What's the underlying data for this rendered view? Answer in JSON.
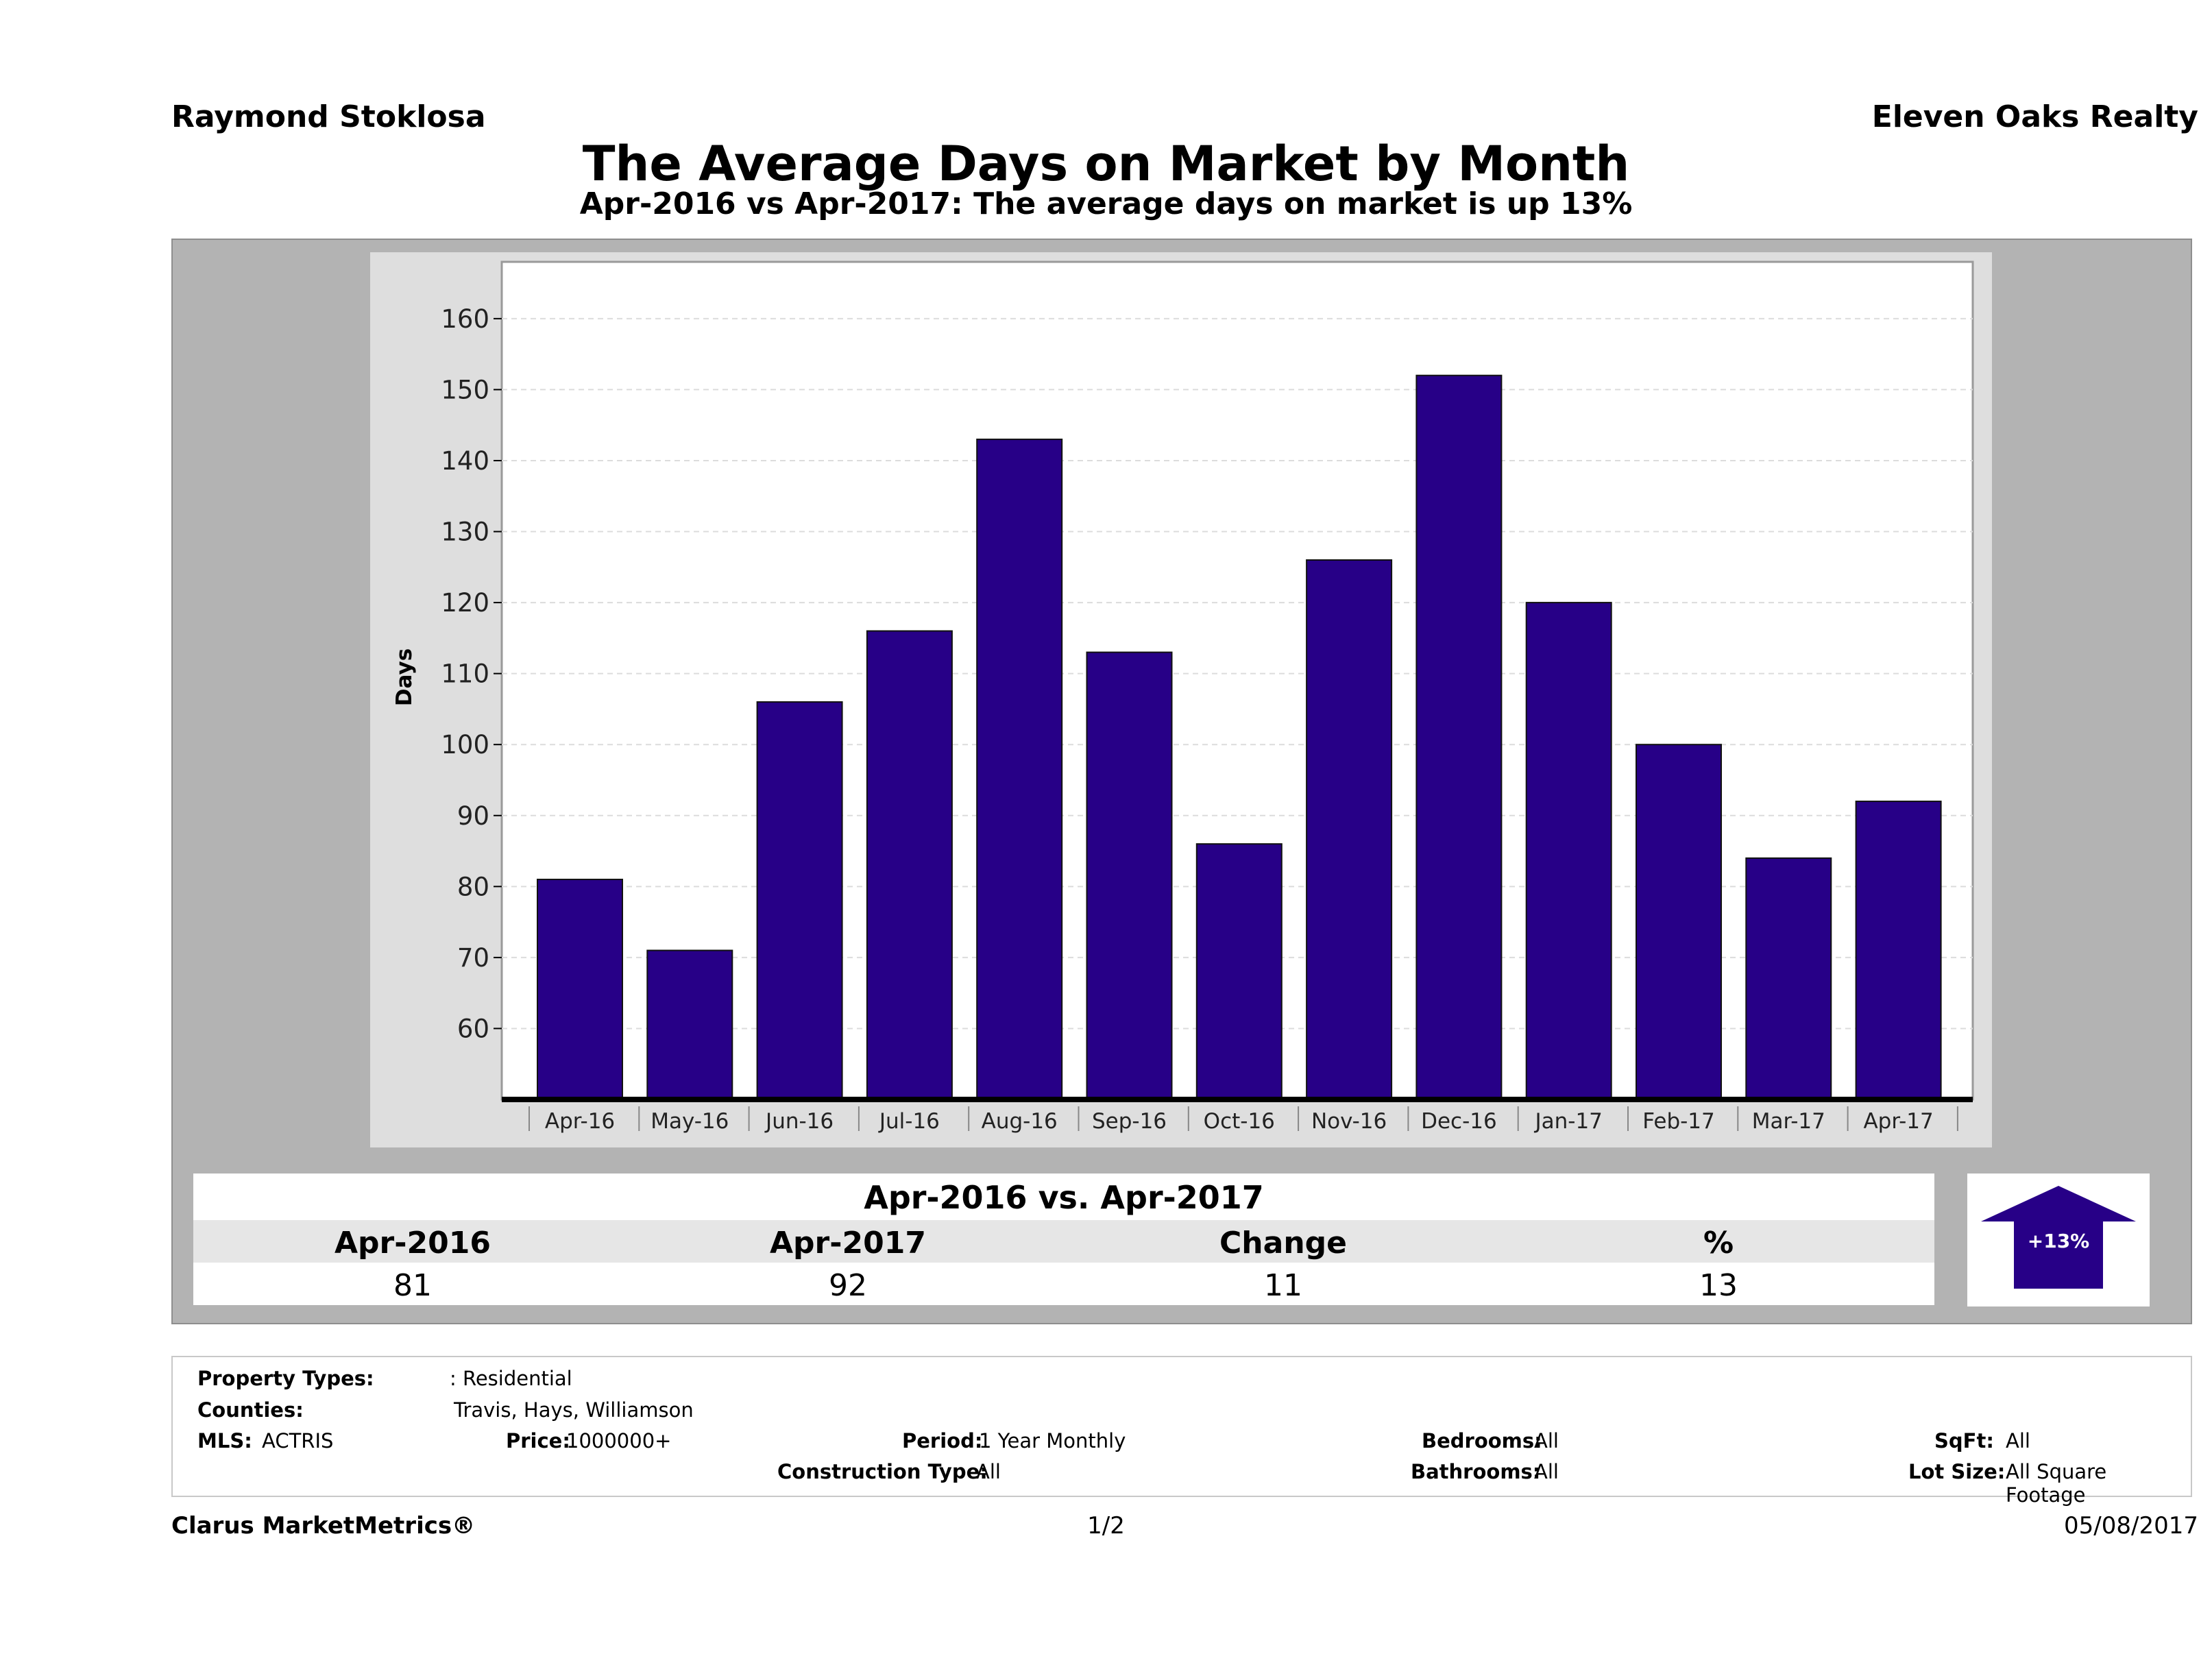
{
  "header": {
    "agent_name": "Raymond Stoklosa",
    "company_name": "Eleven Oaks Realty"
  },
  "chart_data": {
    "type": "bar",
    "title": "The Average Days on Market by Month",
    "subtitle": "Apr-2016 vs Apr-2017: The average days on market is up 13%",
    "ylabel": "Days",
    "xlabel": "",
    "ylim": [
      50,
      168
    ],
    "yticks": [
      60,
      70,
      80,
      90,
      100,
      110,
      120,
      130,
      140,
      150,
      160
    ],
    "grid": true,
    "bar_color": "#270087",
    "categories": [
      "Apr-16",
      "May-16",
      "Jun-16",
      "Jul-16",
      "Aug-16",
      "Sep-16",
      "Oct-16",
      "Nov-16",
      "Dec-16",
      "Jan-17",
      "Feb-17",
      "Mar-17",
      "Apr-17"
    ],
    "values": [
      81,
      71,
      106,
      116,
      143,
      113,
      86,
      126,
      152,
      120,
      100,
      84,
      92
    ]
  },
  "comparison": {
    "title": "Apr-2016 vs. Apr-2017",
    "headers": [
      "Apr-2016",
      "Apr-2017",
      "Change",
      "%"
    ],
    "values": [
      "81",
      "92",
      "11",
      "13"
    ],
    "change_badge": "+13%",
    "change_direction": "up",
    "badge_color": "#270087"
  },
  "details": {
    "property_types_label": "Property Types:",
    "property_types_value": ": Residential",
    "counties_label": "Counties:",
    "counties_value": "Travis, Hays, Williamson",
    "mls_label": "MLS:",
    "mls_value": "ACTRIS",
    "price_label": "Price:",
    "price_value": "1000000+",
    "period_label": "Period:",
    "period_value": "1 Year Monthly",
    "construction_label": "Construction Type:",
    "construction_value": "All",
    "bedrooms_label": "Bedrooms:",
    "bedrooms_value": "All",
    "bathrooms_label": "Bathrooms:",
    "bathrooms_value": "All",
    "sqft_label": "SqFt:",
    "sqft_value": "All",
    "lot_size_label": "Lot Size:",
    "lot_size_value": "All Square Footage"
  },
  "footer": {
    "brand": "Clarus MarketMetrics®",
    "page": "1/2",
    "date": "05/08/2017"
  }
}
